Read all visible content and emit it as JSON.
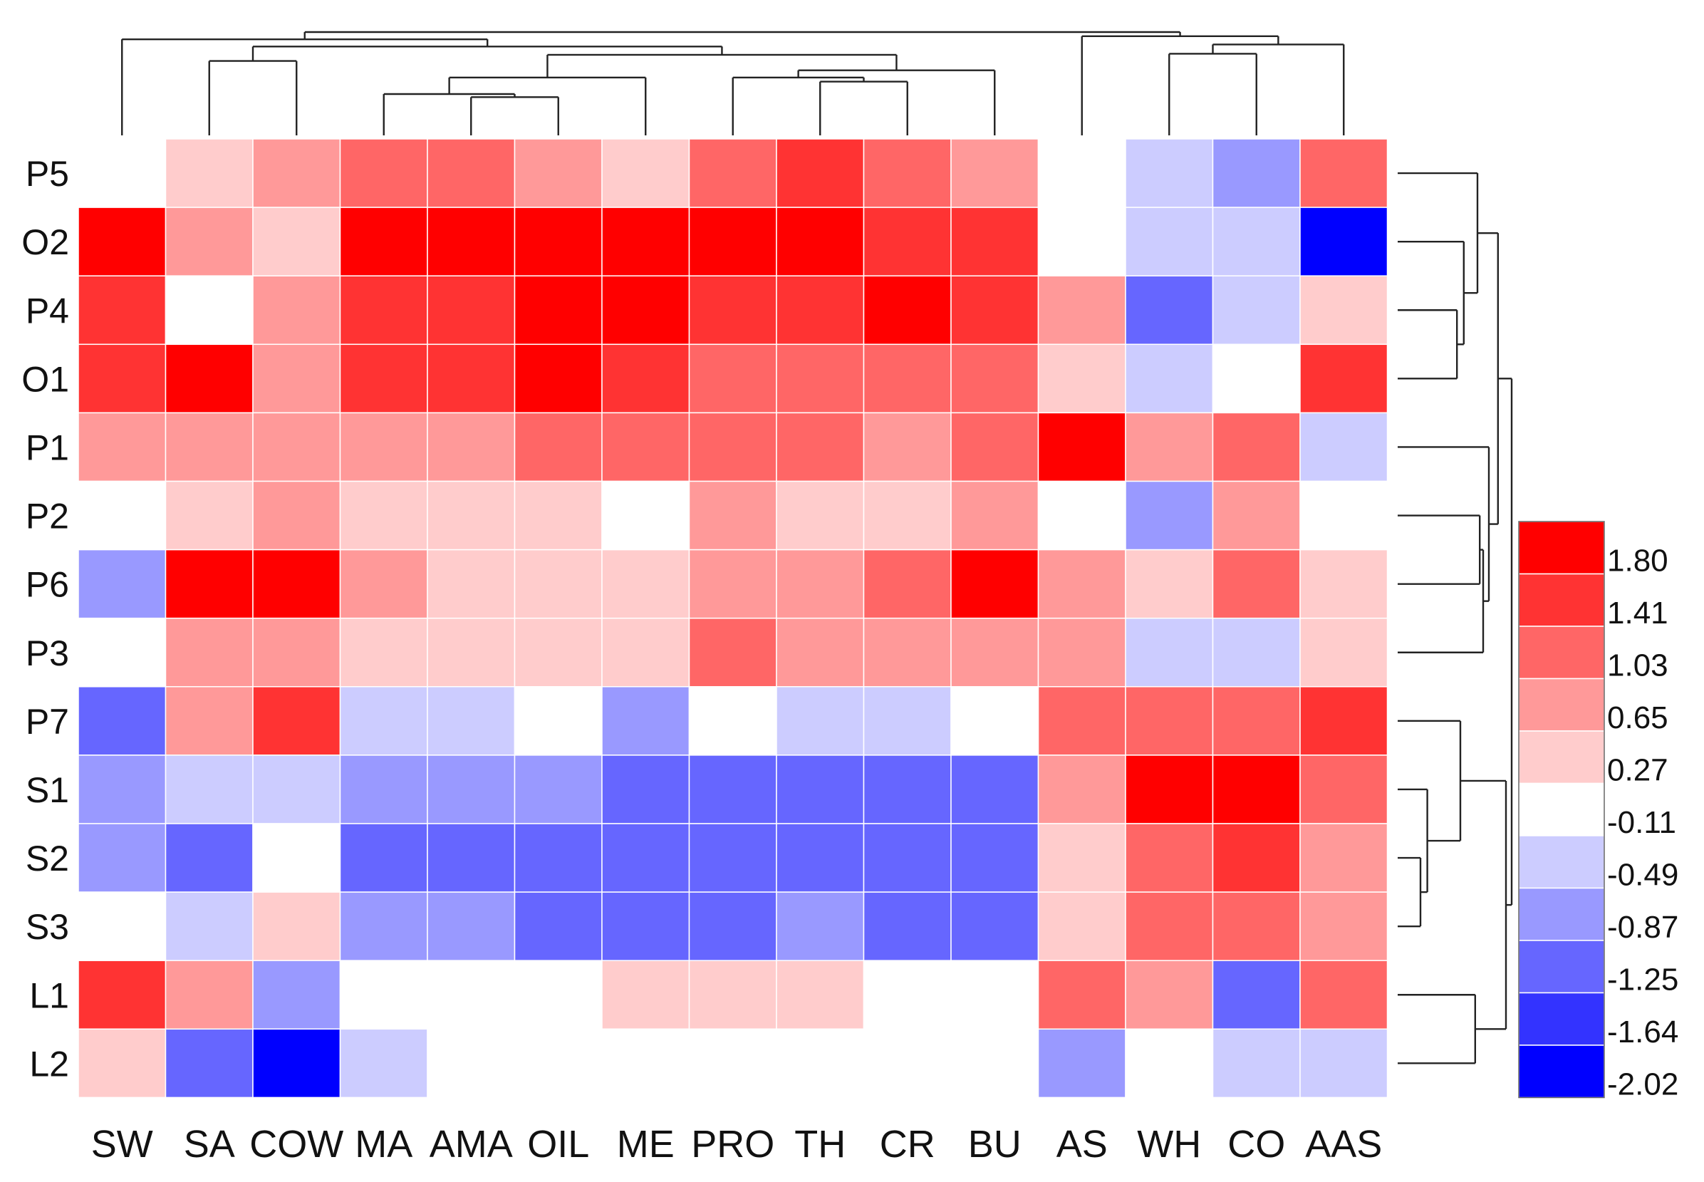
{
  "chart_data": {
    "type": "heatmap",
    "title": "",
    "rows": [
      "P5",
      "O2",
      "P4",
      "O1",
      "P1",
      "P2",
      "P6",
      "P3",
      "P7",
      "S1",
      "S2",
      "S3",
      "L1",
      "L2"
    ],
    "columns": [
      "SW",
      "SA",
      "COW",
      "MA",
      "AMA",
      "OIL",
      "ME",
      "PRO",
      "TH",
      "CR",
      "BU",
      "AS",
      "WH",
      "CO",
      "AAS"
    ],
    "values": [
      [
        -0.3,
        0.1,
        0.45,
        0.8,
        0.8,
        0.45,
        0.1,
        0.8,
        1.2,
        0.8,
        0.45,
        -0.3,
        -0.7,
        -1.1,
        0.8
      ],
      [
        2.0,
        0.45,
        0.1,
        1.6,
        2.0,
        2.0,
        1.6,
        1.6,
        1.6,
        1.2,
        1.2,
        -0.3,
        -0.7,
        -0.7,
        -2.1
      ],
      [
        1.2,
        -0.3,
        0.45,
        1.2,
        1.2,
        1.6,
        1.6,
        1.2,
        1.2,
        1.6,
        1.2,
        0.45,
        -1.5,
        -0.7,
        0.1
      ],
      [
        1.2,
        1.6,
        0.45,
        1.2,
        1.2,
        1.6,
        1.2,
        0.8,
        0.8,
        0.8,
        0.8,
        0.1,
        -0.7,
        -0.3,
        1.2
      ],
      [
        0.45,
        0.45,
        0.45,
        0.45,
        0.45,
        0.8,
        0.8,
        0.8,
        0.8,
        0.45,
        0.8,
        2.0,
        0.45,
        0.8,
        -0.7
      ],
      [
        -0.3,
        0.1,
        0.45,
        0.1,
        0.1,
        0.1,
        -0.3,
        0.45,
        0.1,
        0.1,
        0.45,
        -0.3,
        -1.1,
        0.45,
        -0.3
      ],
      [
        -1.1,
        2.0,
        1.6,
        0.45,
        0.1,
        0.1,
        0.1,
        0.45,
        0.45,
        0.8,
        1.6,
        0.45,
        0.1,
        0.8,
        0.1
      ],
      [
        -0.3,
        0.45,
        0.45,
        0.1,
        0.1,
        0.1,
        0.1,
        0.8,
        0.45,
        0.45,
        0.45,
        0.45,
        -0.7,
        -0.7,
        0.1
      ],
      [
        -1.5,
        0.45,
        1.2,
        -0.7,
        -0.7,
        -0.3,
        -1.1,
        -0.3,
        -0.7,
        -0.7,
        -0.3,
        0.8,
        0.8,
        0.8,
        1.2
      ],
      [
        -1.1,
        -0.7,
        -0.7,
        -1.1,
        -1.1,
        -1.1,
        -1.5,
        -1.5,
        -1.5,
        -1.5,
        -1.5,
        0.45,
        2.0,
        1.6,
        0.8
      ],
      [
        -1.1,
        -1.5,
        -0.3,
        -1.5,
        -1.5,
        -1.5,
        -1.5,
        -1.5,
        -1.5,
        -1.5,
        -1.5,
        0.1,
        0.8,
        1.2,
        0.45
      ],
      [
        -0.3,
        -0.7,
        0.1,
        -1.1,
        -1.1,
        -1.5,
        -1.5,
        -1.5,
        -1.1,
        -1.5,
        -1.5,
        0.1,
        0.8,
        0.8,
        0.45
      ],
      [
        1.2,
        0.45,
        -1.1,
        -0.3,
        -0.3,
        -0.3,
        0.1,
        0.1,
        0.1,
        -0.3,
        -0.3,
        0.8,
        0.45,
        -1.5,
        0.8
      ],
      [
        0.1,
        -1.5,
        -2.1,
        -0.7,
        -0.3,
        -0.3,
        -0.3,
        -0.3,
        -0.3,
        -0.3,
        -0.3,
        -1.1,
        -0.3,
        -0.7,
        -0.7
      ]
    ],
    "color_bins": [
      {
        "label": "1.80",
        "color": "#ff0000"
      },
      {
        "label": "1.41",
        "color": "#ff3333"
      },
      {
        "label": "1.03",
        "color": "#ff6666"
      },
      {
        "label": "0.65",
        "color": "#ff9999"
      },
      {
        "label": "0.27",
        "color": "#ffcccc"
      },
      {
        "label": "-0.11",
        "color": "#ffffff"
      },
      {
        "label": "-0.49",
        "color": "#ccccff"
      },
      {
        "label": "-0.87",
        "color": "#9999ff"
      },
      {
        "label": "-1.25",
        "color": "#6666ff"
      },
      {
        "label": "-1.64",
        "color": "#3333ff"
      },
      {
        "label": "-2.02",
        "color": "#0000ff"
      }
    ],
    "legend_position": "right",
    "column_dendrogram": "top",
    "row_dendrogram": "right"
  }
}
